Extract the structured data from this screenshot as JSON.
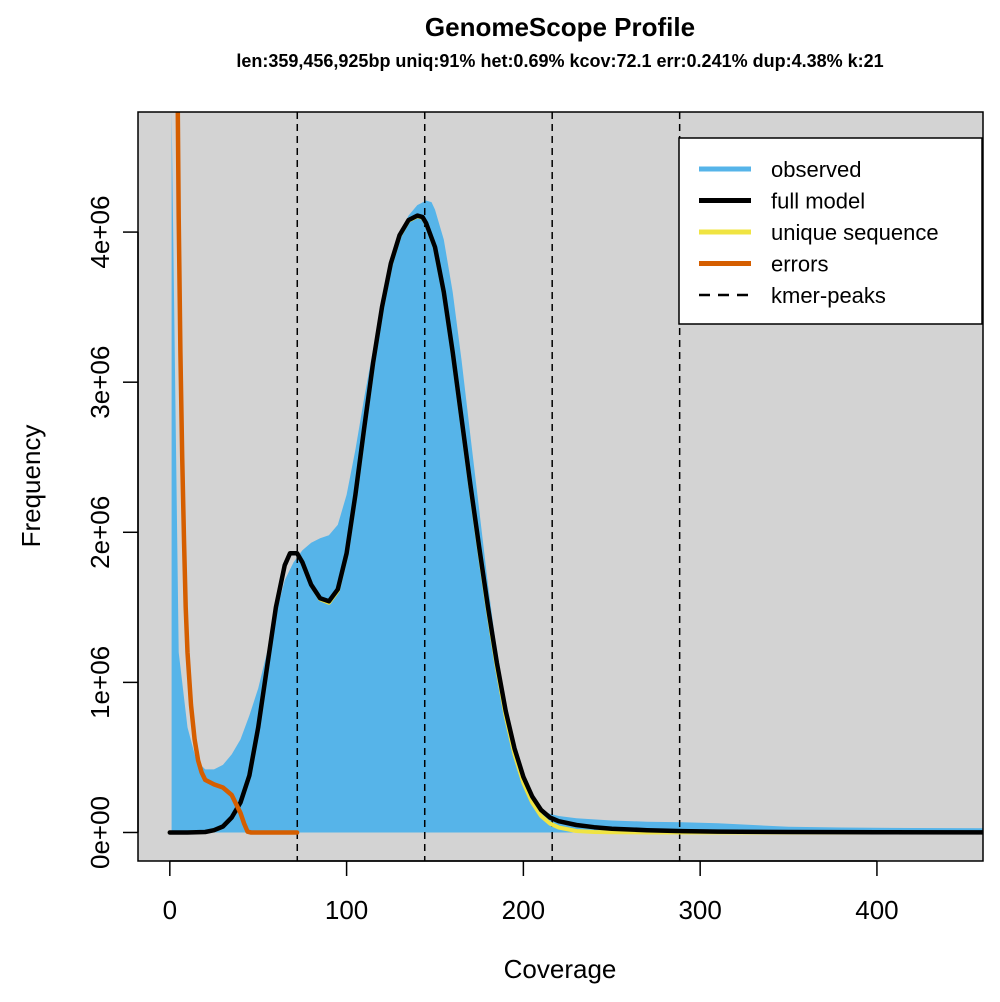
{
  "chart_data": {
    "type": "area",
    "title": "GenomeScope Profile",
    "subtitle": "len:359,456,925bp uniq:91%  het:0.69% kcov:72.1 err:0.241%  dup:4.38%  k:21",
    "xlabel": "Coverage",
    "ylabel": "Frequency",
    "xlim": [
      -18,
      460
    ],
    "ylim": [
      -190000,
      4800000
    ],
    "x_ticks": [
      0,
      100,
      200,
      300,
      400
    ],
    "x_tick_labels": [
      "0",
      "100",
      "200",
      "300",
      "400"
    ],
    "y_ticks": [
      0,
      1000000,
      2000000,
      3000000,
      4000000
    ],
    "y_tick_labels": [
      "0e+00",
      "1e+06",
      "2e+06",
      "3e+06",
      "4e+06"
    ],
    "plot_background": "#d3d3d3",
    "grid": false,
    "legend_position": "top-right",
    "legend": [
      {
        "label": "observed",
        "color": "#56b4e9",
        "style": "solid"
      },
      {
        "label": "full model",
        "color": "#000000",
        "style": "solid"
      },
      {
        "label": "unique sequence",
        "color": "#f0e442",
        "style": "solid"
      },
      {
        "label": "errors",
        "color": "#d55e00",
        "style": "solid"
      },
      {
        "label": "kmer-peaks",
        "color": "#000000",
        "style": "dashed"
      }
    ],
    "kmer_peaks": [
      72.1,
      144.2,
      216.3,
      288.4
    ],
    "series": [
      {
        "name": "observed",
        "color": "#56b4e9",
        "x": [
          1,
          5,
          10,
          15,
          20,
          25,
          30,
          35,
          40,
          45,
          50,
          55,
          60,
          65,
          70,
          75,
          80,
          85,
          90,
          95,
          100,
          105,
          110,
          115,
          120,
          125,
          130,
          135,
          140,
          145,
          148,
          150,
          155,
          160,
          165,
          170,
          175,
          180,
          185,
          190,
          195,
          200,
          205,
          210,
          215,
          220,
          230,
          250,
          270,
          290,
          310,
          330,
          350,
          380,
          420,
          460
        ],
        "y": [
          4800000,
          1200000,
          700000,
          480000,
          420000,
          420000,
          450000,
          520000,
          620000,
          780000,
          960000,
          1200000,
          1450000,
          1680000,
          1800000,
          1880000,
          1930000,
          1960000,
          1980000,
          2050000,
          2250000,
          2550000,
          2900000,
          3220000,
          3520000,
          3780000,
          3990000,
          4110000,
          4180000,
          4210000,
          4200000,
          4150000,
          3950000,
          3600000,
          3150000,
          2650000,
          2150000,
          1650000,
          1200000,
          820000,
          530000,
          330000,
          210000,
          150000,
          125000,
          110000,
          95000,
          80000,
          72000,
          68000,
          62000,
          50000,
          38000,
          33000,
          30000,
          28000
        ]
      },
      {
        "name": "full model",
        "color": "#000000",
        "x": [
          0,
          10,
          20,
          25,
          30,
          35,
          40,
          45,
          50,
          55,
          60,
          65,
          68,
          72,
          75,
          80,
          85,
          90,
          95,
          100,
          105,
          110,
          115,
          120,
          125,
          130,
          135,
          140,
          143,
          145,
          150,
          155,
          160,
          165,
          170,
          175,
          180,
          185,
          190,
          195,
          200,
          205,
          210,
          215,
          220,
          230,
          240,
          250,
          270,
          290,
          310,
          350,
          400,
          460
        ],
        "y": [
          0,
          0,
          3000,
          15000,
          40000,
          100000,
          200000,
          380000,
          700000,
          1100000,
          1500000,
          1780000,
          1860000,
          1860000,
          1800000,
          1650000,
          1560000,
          1540000,
          1620000,
          1860000,
          2250000,
          2700000,
          3130000,
          3500000,
          3790000,
          3980000,
          4080000,
          4110000,
          4100000,
          4060000,
          3900000,
          3600000,
          3200000,
          2760000,
          2320000,
          1900000,
          1500000,
          1130000,
          810000,
          560000,
          370000,
          240000,
          150000,
          100000,
          75000,
          50000,
          35000,
          25000,
          15000,
          9000,
          6000,
          3000,
          1500,
          800
        ]
      },
      {
        "name": "unique sequence",
        "color": "#f0e442",
        "x": [
          0,
          10,
          20,
          25,
          30,
          35,
          40,
          45,
          50,
          55,
          60,
          65,
          68,
          72,
          75,
          80,
          85,
          90,
          95,
          100,
          105,
          110,
          115,
          120,
          125,
          130,
          135,
          140,
          143,
          145,
          150,
          155,
          160,
          165,
          170,
          175,
          180,
          185,
          190,
          195,
          200,
          205,
          210,
          215,
          220,
          230,
          240,
          250,
          270,
          290,
          310,
          350,
          400,
          460
        ],
        "y": [
          0,
          0,
          3000,
          15000,
          40000,
          100000,
          200000,
          380000,
          700000,
          1100000,
          1500000,
          1780000,
          1860000,
          1860000,
          1800000,
          1650000,
          1555000,
          1530000,
          1610000,
          1855000,
          2245000,
          2695000,
          3125000,
          3495000,
          3785000,
          3975000,
          4075000,
          4105000,
          4095000,
          4055000,
          3895000,
          3595000,
          3195000,
          2750000,
          2305000,
          1880000,
          1475000,
          1100000,
          775000,
          520000,
          330000,
          200000,
          110000,
          60000,
          33000,
          10000,
          3000,
          1000,
          200,
          0,
          0,
          0,
          0,
          0
        ]
      },
      {
        "name": "errors",
        "color": "#d55e00",
        "x": [
          4.5,
          5,
          6,
          7,
          8,
          9,
          10,
          12,
          14,
          16,
          18,
          20,
          25,
          30,
          35,
          40,
          42,
          44,
          46,
          72
        ],
        "y": [
          4800000,
          4100000,
          3200000,
          2500000,
          1950000,
          1500000,
          1200000,
          850000,
          620000,
          480000,
          400000,
          350000,
          320000,
          300000,
          250000,
          130000,
          60000,
          5000,
          0,
          0
        ]
      }
    ]
  }
}
